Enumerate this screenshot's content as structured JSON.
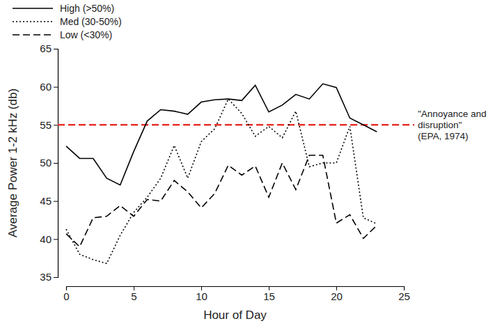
{
  "chart_data": {
    "type": "line",
    "x_label": "Hour of Day",
    "y_label": "Average Power 1-2 kHz (db)",
    "x": [
      0,
      1,
      2,
      3,
      4,
      5,
      6,
      7,
      8,
      9,
      10,
      11,
      12,
      13,
      14,
      15,
      16,
      17,
      18,
      19,
      20,
      21,
      22,
      23
    ],
    "series": [
      {
        "name": "High (>50%)",
        "color": "#000000",
        "line_style": "solid",
        "values": [
          52.2,
          50.6,
          50.6,
          48.0,
          47.1,
          51.5,
          55.5,
          57.0,
          56.8,
          56.4,
          58.0,
          58.3,
          58.4,
          58.2,
          60.2,
          56.7,
          57.6,
          59.0,
          58.4,
          60.4,
          59.9,
          55.9,
          55.0,
          54.1
        ]
      },
      {
        "name": "Med (30-50%)",
        "color": "#000000",
        "line_style": "dotted",
        "values": [
          41.3,
          38.0,
          37.3,
          36.8,
          40.5,
          43.5,
          45.5,
          48.0,
          52.3,
          48.0,
          52.8,
          54.5,
          58.4,
          56.5,
          53.5,
          54.8,
          53.3,
          56.8,
          49.5,
          50.0,
          50.0,
          54.8,
          42.8,
          42.0
        ]
      },
      {
        "name": "Low (<30%)",
        "color": "#000000",
        "line_style": "dashed",
        "values": [
          40.7,
          39.0,
          42.8,
          43.0,
          44.4,
          43.0,
          45.2,
          45.0,
          47.7,
          46.2,
          44.1,
          46.0,
          49.7,
          48.4,
          49.6,
          45.5,
          50.0,
          46.5,
          51.0,
          51.0,
          42.1,
          43.2,
          40.1,
          41.8
        ]
      }
    ],
    "annotations": [
      {
        "y": 55,
        "color": "#e8302a",
        "line_style": "dashed",
        "text": [
          "\"Annoyance and",
          "disruption\"",
          "(EPA, 1974)"
        ]
      }
    ],
    "xlim": [
      0,
      25
    ],
    "xticks": [
      0,
      5,
      10,
      15,
      20,
      25
    ],
    "ylim": [
      35,
      65
    ],
    "yticks": [
      35,
      40,
      45,
      50,
      55,
      60,
      65
    ],
    "legend": "upper left",
    "grid": false
  }
}
